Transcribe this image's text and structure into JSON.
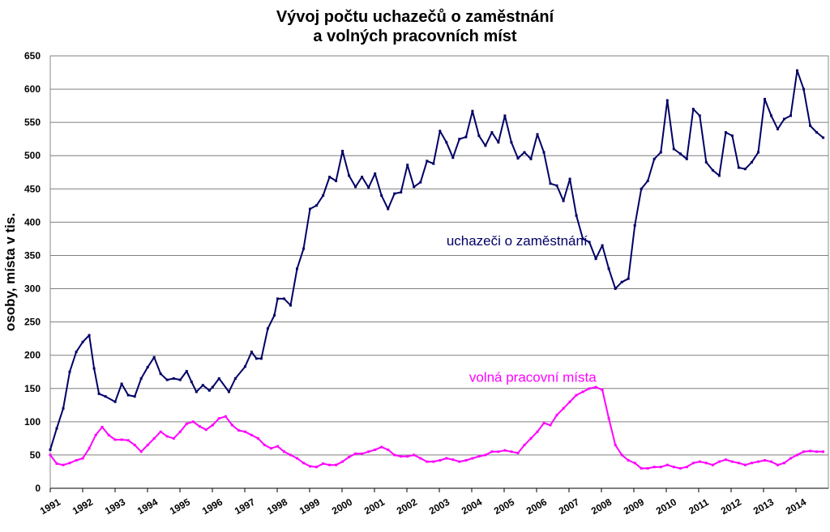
{
  "chart_data": {
    "type": "line",
    "title_line1": "Vývoj počtu uchazečů o zaměstnání",
    "title_line2": "a volných pracovních míst",
    "ylabel": "osoby, místa v tis.",
    "ylim": [
      0,
      650
    ],
    "yticks": [
      "0",
      "50",
      "100",
      "150",
      "200",
      "250",
      "300",
      "350",
      "400",
      "450",
      "500",
      "550",
      "600",
      "650"
    ],
    "xticks": [
      "1991",
      "1992",
      "1993",
      "1994",
      "1995",
      "1996",
      "1997",
      "1998",
      "1999",
      "2000",
      "2001",
      "2002",
      "2003",
      "2004",
      "2005",
      "2006",
      "2007",
      "2008",
      "2009",
      "2010",
      "2011",
      "2012",
      "2013",
      "2014"
    ],
    "xrange": [
      1991.0,
      2014.96
    ],
    "grid": true,
    "series": [
      {
        "name": "uchazeči o zaměstnání",
        "color": "#000066",
        "x": [
          1991.0,
          1991.2,
          1991.4,
          1991.6,
          1991.8,
          1992.0,
          1992.2,
          1992.35,
          1992.5,
          1992.7,
          1993.0,
          1993.2,
          1993.4,
          1993.6,
          1993.8,
          1994.0,
          1994.2,
          1994.4,
          1994.6,
          1994.8,
          1995.0,
          1995.2,
          1995.35,
          1995.5,
          1995.7,
          1995.9,
          1996.0,
          1996.2,
          1996.5,
          1996.7,
          1997.0,
          1997.2,
          1997.35,
          1997.5,
          1997.7,
          1997.9,
          1998.0,
          1998.2,
          1998.4,
          1998.6,
          1998.8,
          1999.0,
          1999.2,
          1999.4,
          1999.6,
          1999.8,
          2000.0,
          2000.2,
          2000.4,
          2000.6,
          2000.8,
          2001.0,
          2001.2,
          2001.4,
          2001.6,
          2001.8,
          2002.0,
          2002.2,
          2002.4,
          2002.6,
          2002.8,
          2003.0,
          2003.2,
          2003.4,
          2003.6,
          2003.8,
          2004.0,
          2004.2,
          2004.4,
          2004.6,
          2004.8,
          2005.0,
          2005.2,
          2005.4,
          2005.6,
          2005.8,
          2006.0,
          2006.2,
          2006.4,
          2006.6,
          2006.8,
          2007.0,
          2007.2,
          2007.4,
          2007.6,
          2007.8,
          2008.0,
          2008.2,
          2008.4,
          2008.6,
          2008.8,
          2009.0,
          2009.2,
          2009.4,
          2009.6,
          2009.8,
          2010.0,
          2010.2,
          2010.4,
          2010.6,
          2010.8,
          2011.0,
          2011.2,
          2011.4,
          2011.6,
          2011.8,
          2012.0,
          2012.2,
          2012.4,
          2012.6,
          2012.8,
          2013.0,
          2013.2,
          2013.4,
          2013.6,
          2013.8,
          2014.0,
          2014.2,
          2014.4,
          2014.6,
          2014.8
        ],
        "values": [
          58,
          90,
          120,
          175,
          205,
          220,
          230,
          180,
          142,
          138,
          130,
          157,
          140,
          138,
          165,
          182,
          197,
          172,
          163,
          165,
          163,
          176,
          160,
          145,
          155,
          147,
          152,
          165,
          145,
          165,
          183,
          205,
          195,
          195,
          240,
          260,
          285,
          285,
          275,
          330,
          360,
          420,
          425,
          440,
          468,
          462,
          507,
          470,
          453,
          468,
          452,
          473,
          440,
          420,
          443,
          445,
          486,
          453,
          460,
          492,
          488,
          537,
          520,
          497,
          525,
          528,
          567,
          530,
          515,
          535,
          520,
          560,
          520,
          496,
          505,
          495,
          532,
          505,
          458,
          455,
          432,
          465,
          410,
          375,
          370,
          345,
          365,
          330,
          300,
          310,
          315,
          395,
          450,
          462,
          495,
          505,
          583,
          510,
          503,
          495,
          570,
          560,
          490,
          478,
          470,
          535,
          530,
          482,
          480,
          490,
          505,
          585,
          560,
          540,
          555,
          560,
          628,
          600,
          545,
          535,
          527
        ]
      },
      {
        "name": "volná pracovní místa",
        "color": "#ff00ff",
        "x": [
          1991.0,
          1991.2,
          1991.4,
          1991.6,
          1991.8,
          1992.0,
          1992.2,
          1992.4,
          1992.6,
          1992.8,
          1993.0,
          1993.2,
          1993.4,
          1993.6,
          1993.8,
          1994.0,
          1994.2,
          1994.4,
          1994.6,
          1994.8,
          1995.0,
          1995.2,
          1995.4,
          1995.6,
          1995.8,
          1996.0,
          1996.2,
          1996.4,
          1996.6,
          1996.8,
          1997.0,
          1997.2,
          1997.4,
          1997.6,
          1997.8,
          1998.0,
          1998.2,
          1998.4,
          1998.6,
          1998.8,
          1999.0,
          1999.2,
          1999.4,
          1999.6,
          1999.8,
          2000.0,
          2000.2,
          2000.4,
          2000.6,
          2000.8,
          2001.0,
          2001.2,
          2001.4,
          2001.6,
          2001.8,
          2002.0,
          2002.2,
          2002.4,
          2002.6,
          2002.8,
          2003.0,
          2003.2,
          2003.4,
          2003.6,
          2003.8,
          2004.0,
          2004.2,
          2004.4,
          2004.6,
          2004.8,
          2005.0,
          2005.2,
          2005.4,
          2005.6,
          2005.8,
          2006.0,
          2006.2,
          2006.4,
          2006.6,
          2006.8,
          2007.0,
          2007.2,
          2007.4,
          2007.6,
          2007.8,
          2008.0,
          2008.2,
          2008.4,
          2008.6,
          2008.8,
          2009.0,
          2009.2,
          2009.4,
          2009.6,
          2009.8,
          2010.0,
          2010.2,
          2010.4,
          2010.6,
          2010.8,
          2011.0,
          2011.2,
          2011.4,
          2011.6,
          2011.8,
          2012.0,
          2012.2,
          2012.4,
          2012.6,
          2012.8,
          2013.0,
          2013.2,
          2013.4,
          2013.6,
          2013.8,
          2014.0,
          2014.2,
          2014.4,
          2014.6,
          2014.8
        ],
        "values": [
          50,
          37,
          35,
          38,
          42,
          45,
          60,
          80,
          92,
          80,
          73,
          73,
          72,
          65,
          55,
          65,
          75,
          85,
          78,
          75,
          85,
          97,
          100,
          93,
          88,
          95,
          105,
          108,
          95,
          87,
          85,
          80,
          75,
          65,
          60,
          63,
          55,
          50,
          45,
          38,
          33,
          32,
          37,
          35,
          35,
          40,
          47,
          52,
          52,
          55,
          58,
          62,
          58,
          50,
          48,
          48,
          50,
          45,
          40,
          40,
          42,
          45,
          43,
          40,
          42,
          45,
          48,
          50,
          55,
          55,
          57,
          55,
          53,
          65,
          75,
          85,
          98,
          95,
          110,
          120,
          130,
          140,
          145,
          150,
          152,
          148,
          105,
          65,
          50,
          42,
          38,
          30,
          30,
          32,
          32,
          35,
          32,
          30,
          32,
          38,
          40,
          38,
          35,
          40,
          43,
          40,
          38,
          35,
          38,
          40,
          42,
          40,
          35,
          38,
          45,
          50,
          55,
          56,
          55,
          55
        ]
      }
    ],
    "annotations": [
      {
        "text": "uchazeči o zaměstnání",
        "x": 2003.2,
        "y": 365,
        "series": 0
      },
      {
        "text": "volná pracovní místa",
        "x": 2003.9,
        "y": 160,
        "series": 1
      }
    ]
  }
}
